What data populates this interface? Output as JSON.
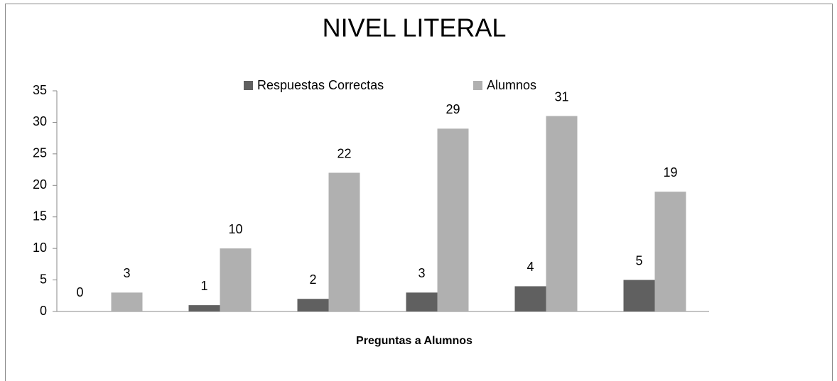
{
  "chart_data": {
    "type": "bar",
    "title": "NIVEL LITERAL",
    "x_label": "Preguntas a Alumnos",
    "categories": [
      null,
      null,
      null,
      null,
      null,
      null
    ],
    "series": [
      {
        "name": "Respuestas Correctas",
        "color": "#606060",
        "values": [
          0,
          1,
          2,
          3,
          4,
          5
        ]
      },
      {
        "name": "Alumnos",
        "color": "#b0b0b0",
        "values": [
          3,
          10,
          22,
          29,
          31,
          19
        ]
      }
    ],
    "ylim": [
      0,
      35
    ],
    "yticks": [
      0,
      5,
      10,
      15,
      20,
      25,
      30,
      35
    ],
    "grid": false,
    "legend": "top",
    "data_labels": true
  }
}
